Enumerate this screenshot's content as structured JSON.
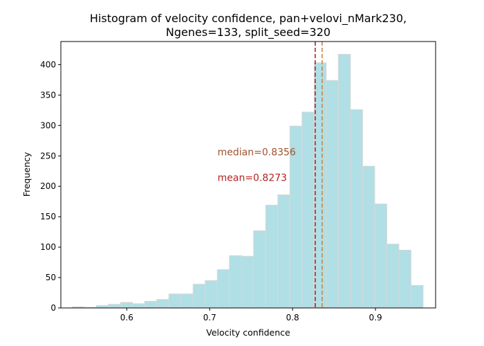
{
  "chart_data": {
    "type": "bar",
    "title_lines": [
      "Histogram of velocity confidence, pan+velovi_nMark230,",
      "Ngenes=133, split_seed=320"
    ],
    "xlabel": "Velocity confidence",
    "ylabel": "Frequency",
    "xlim": [
      0.5205,
      0.9725
    ],
    "ylim": [
      0,
      438
    ],
    "xticks": [
      0.6,
      0.7,
      0.8,
      0.9
    ],
    "xtick_labels": [
      "0.6",
      "0.7",
      "0.8",
      "0.9"
    ],
    "yticks": [
      0,
      50,
      100,
      150,
      200,
      250,
      300,
      350,
      400
    ],
    "ytick_labels": [
      "0",
      "50",
      "100",
      "150",
      "200",
      "250",
      "300",
      "350",
      "400"
    ],
    "bin_edges": [
      0.534,
      0.5486,
      0.5632,
      0.5778,
      0.5924,
      0.607,
      0.6216,
      0.6362,
      0.6508,
      0.6654,
      0.68,
      0.6946,
      0.7092,
      0.7238,
      0.7384,
      0.753,
      0.7676,
      0.7822,
      0.7968,
      0.8114,
      0.826,
      0.8406,
      0.8552,
      0.8698,
      0.8844,
      0.899,
      0.9136,
      0.9282,
      0.9428,
      0.9574
    ],
    "counts": [
      2,
      1,
      4,
      6,
      9,
      7,
      11,
      14,
      23,
      23,
      39,
      45,
      63,
      86,
      85,
      127,
      169,
      186,
      299,
      322,
      403,
      374,
      417,
      326,
      233,
      171,
      105,
      95,
      37
    ],
    "bar_color": "#b0dfe5",
    "bar_edge_color": "#d8d8d8",
    "grid": false,
    "vlines": [
      {
        "value": 0.8273,
        "color": "#b22222",
        "style": "dashed"
      },
      {
        "value": 0.8356,
        "color": "#cd853f",
        "style": "dashed"
      }
    ],
    "annotations": [
      {
        "text": "median=0.8356",
        "x": 0.7095,
        "y": 251,
        "color": "#a0522d"
      },
      {
        "text": "mean=0.8273",
        "x": 0.7095,
        "y": 209,
        "color": "#b22222"
      }
    ]
  }
}
